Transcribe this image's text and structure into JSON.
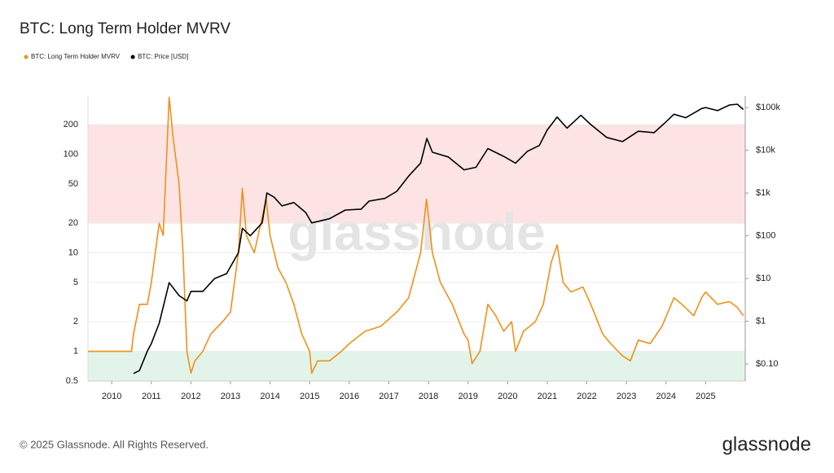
{
  "chart_data": {
    "type": "line",
    "title": "BTC: Long Term Holder MVRV",
    "watermark": "glassnode",
    "footer": "© 2025 Glassnode. All Rights Reserved.",
    "logo": "glassnode",
    "xlim": [
      2009.4,
      2026.0
    ],
    "xticks": [
      2010,
      2011,
      2012,
      2013,
      2014,
      2015,
      2016,
      2017,
      2018,
      2019,
      2020,
      2021,
      2022,
      2023,
      2024,
      2025
    ],
    "ylim": [
      0.5,
      390
    ],
    "yticks": [
      0.5,
      1,
      2,
      5,
      10,
      20,
      50,
      100,
      200
    ],
    "y2lim": [
      0.04,
      186000
    ],
    "y2ticks": [
      {
        "value": 0.1,
        "label": "$0.10"
      },
      {
        "value": 1,
        "label": "$1"
      },
      {
        "value": 10,
        "label": "$10"
      },
      {
        "value": 100,
        "label": "$100"
      },
      {
        "value": 1000,
        "label": "$1k"
      },
      {
        "value": 10000,
        "label": "$10k"
      },
      {
        "value": 100000,
        "label": "$100k"
      }
    ],
    "log_scale": true,
    "grid": true,
    "legend": "top-left",
    "bands": [
      {
        "from": 20,
        "to": 200,
        "color": "#fde3e3"
      },
      {
        "from": 0.5,
        "to": 1,
        "color": "#e2f4e9"
      }
    ],
    "series": [
      {
        "name": "BTC: Long Term Holder MVRV",
        "color": "#f0901a",
        "x": [
          2009.4,
          2010.5,
          2010.55,
          2010.7,
          2010.9,
          2011.0,
          2011.2,
          2011.3,
          2011.45,
          2011.55,
          2011.7,
          2011.8,
          2011.9,
          2012.0,
          2012.1,
          2012.3,
          2012.5,
          2012.8,
          2013.0,
          2013.2,
          2013.3,
          2013.4,
          2013.6,
          2013.9,
          2014.0,
          2014.2,
          2014.4,
          2014.6,
          2014.8,
          2015.0,
          2015.05,
          2015.2,
          2015.5,
          2015.8,
          2016.0,
          2016.4,
          2016.8,
          2017.2,
          2017.5,
          2017.8,
          2017.95,
          2018.1,
          2018.3,
          2018.6,
          2018.9,
          2019.0,
          2019.1,
          2019.3,
          2019.5,
          2019.7,
          2019.9,
          2020.1,
          2020.2,
          2020.4,
          2020.7,
          2020.9,
          2021.1,
          2021.25,
          2021.4,
          2021.6,
          2021.9,
          2022.1,
          2022.4,
          2022.6,
          2022.9,
          2023.1,
          2023.3,
          2023.6,
          2023.9,
          2024.2,
          2024.4,
          2024.7,
          2024.9,
          2025.0,
          2025.3,
          2025.6,
          2025.8,
          2025.95
        ],
        "values": [
          1,
          1,
          1.5,
          3,
          3,
          5,
          20,
          15,
          380,
          150,
          50,
          10,
          1,
          0.6,
          0.8,
          1,
          1.5,
          2,
          2.5,
          10,
          45,
          15,
          10,
          35,
          15,
          7,
          5,
          3,
          1.5,
          1.0,
          0.6,
          0.8,
          0.8,
          1.0,
          1.2,
          1.6,
          1.8,
          2.5,
          3.5,
          10,
          35,
          10,
          5,
          3,
          1.5,
          1.3,
          0.75,
          1.0,
          3,
          2.3,
          1.6,
          2,
          1.0,
          1.6,
          2.0,
          3,
          8,
          12,
          5,
          4,
          4.5,
          3,
          1.5,
          1.2,
          0.9,
          0.8,
          1.3,
          1.2,
          1.8,
          3.5,
          3,
          2.3,
          3.5,
          4,
          3.0,
          3.2,
          2.8,
          2.3
        ]
      },
      {
        "name": "BTC: Price [USD]",
        "color": "#000000",
        "axis": "y2",
        "x": [
          2010.55,
          2010.7,
          2010.9,
          2011.0,
          2011.2,
          2011.45,
          2011.7,
          2011.9,
          2012.0,
          2012.3,
          2012.6,
          2012.9,
          2013.2,
          2013.3,
          2013.5,
          2013.8,
          2013.92,
          2014.1,
          2014.3,
          2014.6,
          2014.9,
          2015.05,
          2015.5,
          2015.9,
          2016.3,
          2016.5,
          2016.9,
          2017.2,
          2017.5,
          2017.8,
          2017.96,
          2018.1,
          2018.5,
          2018.9,
          2019.2,
          2019.5,
          2019.9,
          2020.2,
          2020.5,
          2020.8,
          2021.0,
          2021.25,
          2021.5,
          2021.85,
          2022.1,
          2022.5,
          2022.9,
          2023.3,
          2023.7,
          2023.95,
          2024.2,
          2024.5,
          2024.9,
          2025.0,
          2025.3,
          2025.6,
          2025.8,
          2025.95
        ],
        "values": [
          0.06,
          0.07,
          0.2,
          0.3,
          0.9,
          8,
          4,
          3,
          5,
          5,
          10,
          13,
          40,
          150,
          100,
          200,
          1000,
          800,
          500,
          600,
          350,
          200,
          250,
          400,
          420,
          650,
          750,
          1100,
          2500,
          5000,
          19000,
          9000,
          7000,
          3500,
          4000,
          11000,
          7200,
          5000,
          9500,
          13000,
          30000,
          60000,
          33000,
          66000,
          40000,
          20000,
          16000,
          28000,
          26000,
          42000,
          70000,
          58000,
          95000,
          100000,
          85000,
          115000,
          120000,
          90000
        ]
      }
    ]
  }
}
